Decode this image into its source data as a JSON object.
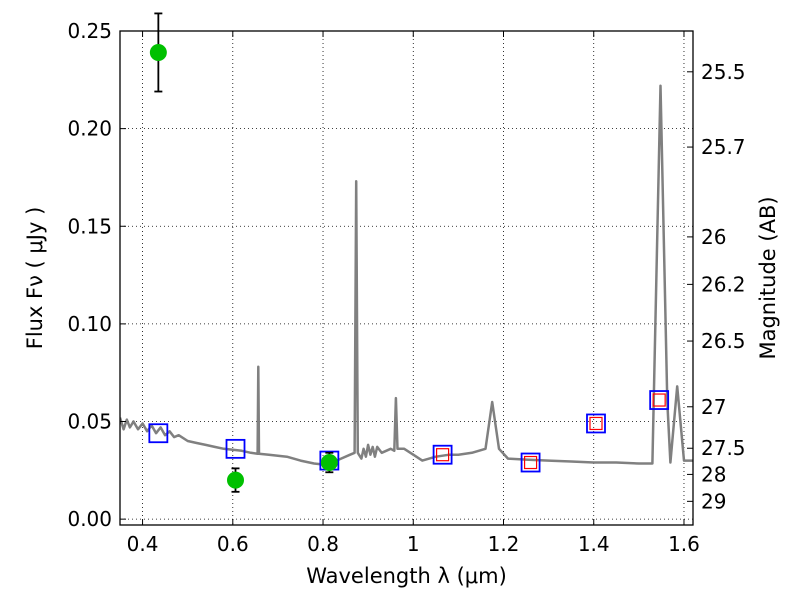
{
  "chart_data": {
    "type": "scatter",
    "xlabel": "Wavelength  λ (μm)",
    "ylabel": "Flux  Fν  ( μJy )",
    "y2label": "Magnitude (AB)",
    "xlim": [
      0.35,
      1.62
    ],
    "ylim": [
      -0.003,
      0.25
    ],
    "grid": true,
    "x_ticks": [
      {
        "v": 0.4,
        "label": "0.4"
      },
      {
        "v": 0.6,
        "label": "0.6"
      },
      {
        "v": 0.8,
        "label": "0.8"
      },
      {
        "v": 1.0,
        "label": "1"
      },
      {
        "v": 1.2,
        "label": "1.2"
      },
      {
        "v": 1.4,
        "label": "1.4"
      },
      {
        "v": 1.6,
        "label": "1.6"
      }
    ],
    "y_ticks": [
      {
        "v": 0.0,
        "label": "0.00"
      },
      {
        "v": 0.05,
        "label": "0.05"
      },
      {
        "v": 0.1,
        "label": "0.10"
      },
      {
        "v": 0.15,
        "label": "0.15"
      },
      {
        "v": 0.2,
        "label": "0.20"
      },
      {
        "v": 0.25,
        "label": "0.25"
      }
    ],
    "mag_ticks": [
      {
        "v": 25.5,
        "label": "25.5"
      },
      {
        "v": 25.7,
        "label": "25.7"
      },
      {
        "v": 26.0,
        "label": "26"
      },
      {
        "v": 26.2,
        "label": "26.2"
      },
      {
        "v": 26.5,
        "label": "26.5"
      },
      {
        "v": 27.0,
        "label": "27"
      },
      {
        "v": 27.5,
        "label": "27.5"
      },
      {
        "v": 28.0,
        "label": "28"
      },
      {
        "v": 29.0,
        "label": "29"
      }
    ],
    "series": [
      {
        "kind": "model_spectrum",
        "color": "#808080",
        "points": [
          [
            0.35,
            0.052
          ],
          [
            0.358,
            0.046
          ],
          [
            0.365,
            0.051
          ],
          [
            0.372,
            0.047
          ],
          [
            0.38,
            0.05
          ],
          [
            0.39,
            0.046
          ],
          [
            0.4,
            0.049
          ],
          [
            0.41,
            0.045
          ],
          [
            0.42,
            0.048
          ],
          [
            0.43,
            0.044
          ],
          [
            0.44,
            0.047
          ],
          [
            0.45,
            0.043
          ],
          [
            0.46,
            0.045
          ],
          [
            0.47,
            0.042
          ],
          [
            0.48,
            0.043
          ],
          [
            0.5,
            0.04
          ],
          [
            0.52,
            0.039
          ],
          [
            0.54,
            0.038
          ],
          [
            0.56,
            0.037
          ],
          [
            0.58,
            0.036
          ],
          [
            0.6,
            0.0355
          ],
          [
            0.62,
            0.035
          ],
          [
            0.64,
            0.034
          ],
          [
            0.655,
            0.0335
          ],
          [
            0.6565,
            0.078
          ],
          [
            0.658,
            0.0335
          ],
          [
            0.68,
            0.033
          ],
          [
            0.7,
            0.0325
          ],
          [
            0.72,
            0.032
          ],
          [
            0.75,
            0.03
          ],
          [
            0.78,
            0.0285
          ],
          [
            0.8,
            0.028
          ],
          [
            0.82,
            0.029
          ],
          [
            0.84,
            0.031
          ],
          [
            0.86,
            0.033
          ],
          [
            0.87,
            0.034
          ],
          [
            0.8735,
            0.173
          ],
          [
            0.877,
            0.034
          ],
          [
            0.885,
            0.031
          ],
          [
            0.89,
            0.036
          ],
          [
            0.895,
            0.032
          ],
          [
            0.9,
            0.038
          ],
          [
            0.905,
            0.033
          ],
          [
            0.91,
            0.037
          ],
          [
            0.915,
            0.032
          ],
          [
            0.92,
            0.037
          ],
          [
            0.93,
            0.034
          ],
          [
            0.95,
            0.036
          ],
          [
            0.958,
            0.035
          ],
          [
            0.9615,
            0.062
          ],
          [
            0.965,
            0.036
          ],
          [
            0.98,
            0.036
          ],
          [
            1.0,
            0.033
          ],
          [
            1.02,
            0.03
          ],
          [
            1.05,
            0.032
          ],
          [
            1.08,
            0.033
          ],
          [
            1.1,
            0.033
          ],
          [
            1.13,
            0.034
          ],
          [
            1.16,
            0.036
          ],
          [
            1.175,
            0.06
          ],
          [
            1.19,
            0.036
          ],
          [
            1.21,
            0.031
          ],
          [
            1.25,
            0.0305
          ],
          [
            1.3,
            0.03
          ],
          [
            1.35,
            0.0295
          ],
          [
            1.4,
            0.029
          ],
          [
            1.45,
            0.029
          ],
          [
            1.5,
            0.0285
          ],
          [
            1.53,
            0.0285
          ],
          [
            1.533,
            0.06
          ],
          [
            1.548,
            0.222
          ],
          [
            1.563,
            0.06
          ],
          [
            1.57,
            0.029
          ],
          [
            1.585,
            0.068
          ],
          [
            1.6,
            0.03
          ],
          [
            1.62,
            0.03
          ]
        ]
      },
      {
        "kind": "observed",
        "marker": "circle",
        "color": "#00c000",
        "points": [
          {
            "x": 0.435,
            "y": 0.239,
            "err": 0.02
          },
          {
            "x": 0.606,
            "y": 0.02,
            "err": 0.006
          },
          {
            "x": 0.814,
            "y": 0.029,
            "err": 0.005
          }
        ]
      },
      {
        "kind": "model_photometry",
        "marker": "square",
        "color": "#0000ff",
        "points": [
          {
            "x": 0.435,
            "y": 0.044
          },
          {
            "x": 0.606,
            "y": 0.036
          },
          {
            "x": 0.814,
            "y": 0.03
          },
          {
            "x": 1.065,
            "y": 0.033
          },
          {
            "x": 1.26,
            "y": 0.029
          },
          {
            "x": 1.405,
            "y": 0.049
          },
          {
            "x": 1.545,
            "y": 0.061
          }
        ]
      },
      {
        "kind": "model_photometry_inner",
        "marker": "square",
        "color": "#ff0000",
        "points": [
          {
            "x": 1.065,
            "y": 0.033
          },
          {
            "x": 1.26,
            "y": 0.029
          },
          {
            "x": 1.405,
            "y": 0.049
          },
          {
            "x": 1.545,
            "y": 0.061
          }
        ]
      }
    ]
  }
}
